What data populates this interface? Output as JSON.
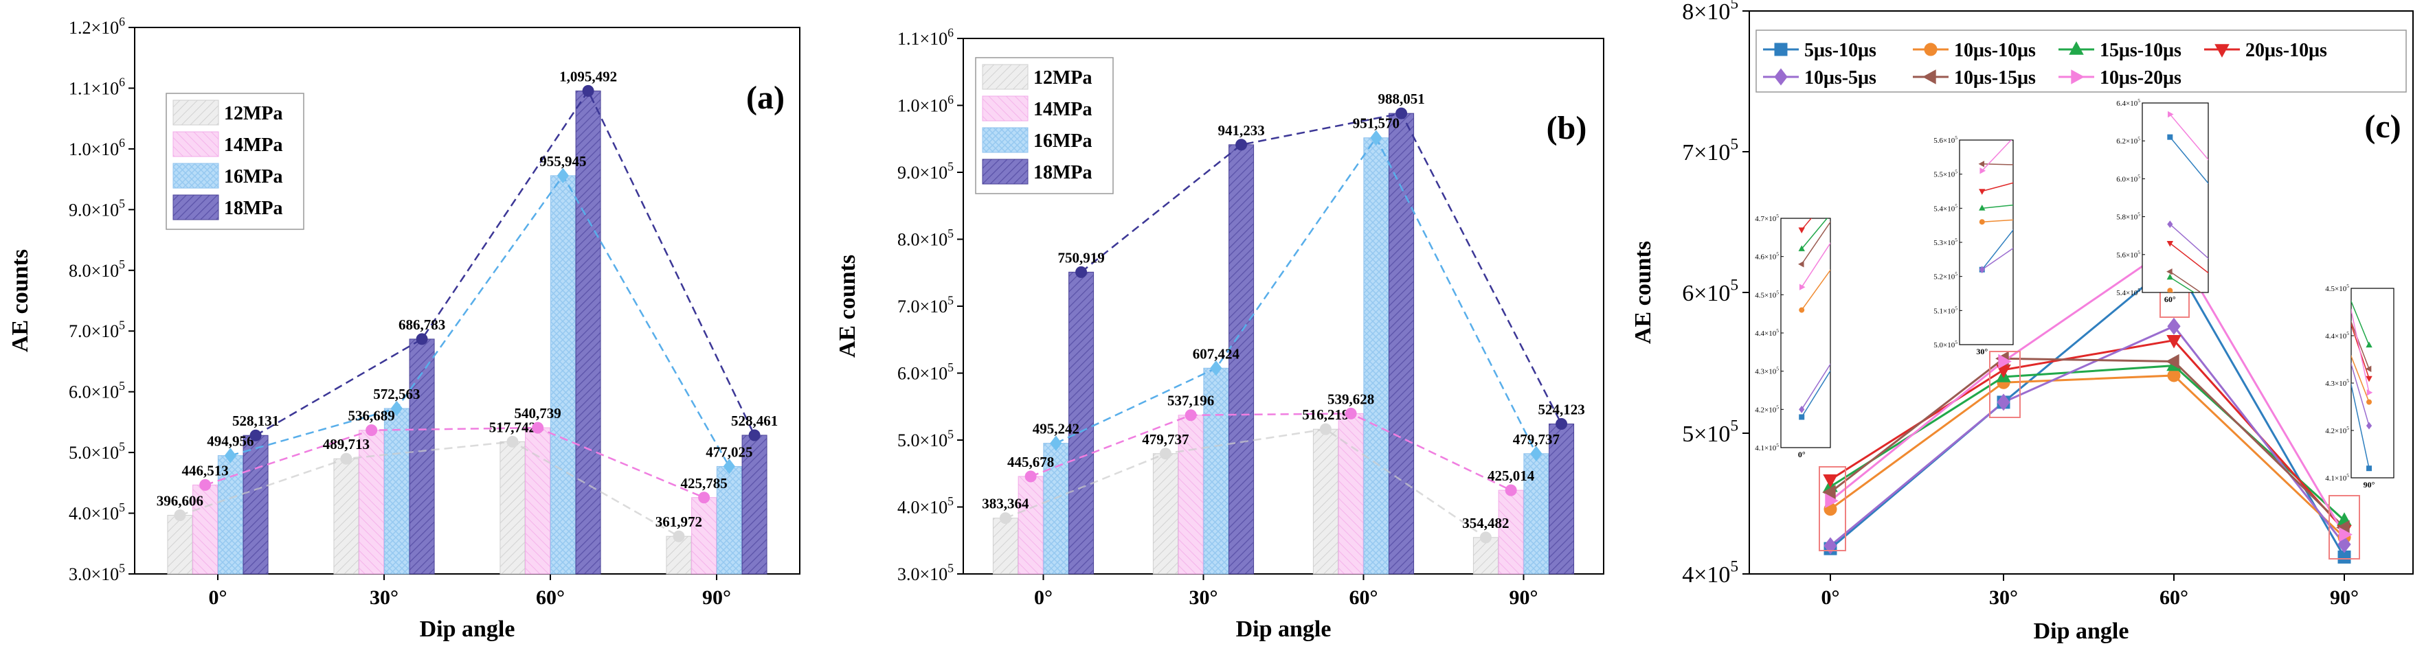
{
  "chart_data": [
    {
      "type": "bar",
      "panel_label": "(a)",
      "xlabel": "Dip angle",
      "ylabel": "AE counts",
      "categories": [
        "0°",
        "30°",
        "60°",
        "90°"
      ],
      "ylim": [
        300000,
        1200000
      ],
      "yticks": [
        {
          "v": 300000,
          "m": "3.0",
          "e": "5"
        },
        {
          "v": 400000,
          "m": "4.0",
          "e": "5"
        },
        {
          "v": 500000,
          "m": "5.0",
          "e": "5"
        },
        {
          "v": 600000,
          "m": "6.0",
          "e": "5"
        },
        {
          "v": 700000,
          "m": "7.0",
          "e": "5"
        },
        {
          "v": 800000,
          "m": "8.0",
          "e": "5"
        },
        {
          "v": 900000,
          "m": "9.0",
          "e": "5"
        },
        {
          "v": 1000000,
          "m": "1.0",
          "e": "6"
        },
        {
          "v": 1100000,
          "m": "1.1",
          "e": "6"
        },
        {
          "v": 1200000,
          "m": "1.2",
          "e": "6"
        }
      ],
      "series": [
        {
          "name": "12MPa",
          "values": [
            396606,
            489713,
            517742,
            361972
          ],
          "labels": [
            "396,606",
            "489,713",
            "517,742",
            "361,972"
          ]
        },
        {
          "name": "14MPa",
          "values": [
            446513,
            536689,
            540739,
            425785
          ],
          "labels": [
            "446,513",
            "536,689",
            "540,739",
            "425,785"
          ]
        },
        {
          "name": "16MPa",
          "values": [
            494956,
            572563,
            955945,
            477025
          ],
          "labels": [
            "494,956",
            "572,563",
            "955,945",
            "477,025"
          ]
        },
        {
          "name": "18MPa",
          "values": [
            528131,
            686783,
            1095492,
            528461
          ],
          "labels": [
            "528,131",
            "686,783",
            "1,095,492",
            "528,461"
          ]
        }
      ]
    },
    {
      "type": "bar",
      "panel_label": "(b)",
      "xlabel": "Dip angle",
      "ylabel": "AE counts",
      "categories": [
        "0°",
        "30°",
        "60°",
        "90°"
      ],
      "ylim": [
        300000,
        1100000
      ],
      "yticks": [
        {
          "v": 300000,
          "m": "3.0",
          "e": "5"
        },
        {
          "v": 400000,
          "m": "4.0",
          "e": "5"
        },
        {
          "v": 500000,
          "m": "5.0",
          "e": "5"
        },
        {
          "v": 600000,
          "m": "6.0",
          "e": "5"
        },
        {
          "v": 700000,
          "m": "7.0",
          "e": "5"
        },
        {
          "v": 800000,
          "m": "8.0",
          "e": "5"
        },
        {
          "v": 900000,
          "m": "9.0",
          "e": "5"
        },
        {
          "v": 1000000,
          "m": "1.0",
          "e": "6"
        },
        {
          "v": 1100000,
          "m": "1.1",
          "e": "6"
        }
      ],
      "series": [
        {
          "name": "12MPa",
          "values": [
            383364,
            479737,
            516219,
            354482
          ],
          "labels": [
            "383,364",
            "479,737",
            "516,219",
            "354,482"
          ]
        },
        {
          "name": "14MPa",
          "values": [
            445678,
            537196,
            539628,
            425014
          ],
          "labels": [
            "445,678",
            "537,196",
            "539,628",
            "425,014"
          ]
        },
        {
          "name": "16MPa",
          "values": [
            495242,
            607424,
            951570,
            479737
          ],
          "labels": [
            "495,242",
            "607,424",
            "951,570",
            "479,737"
          ]
        },
        {
          "name": "18MPa",
          "values": [
            750919,
            941233,
            988051,
            524123
          ],
          "labels": [
            "750,919",
            "941,233",
            "988,051",
            "524,123"
          ]
        }
      ]
    },
    {
      "type": "line",
      "panel_label": "(c)",
      "xlabel": "Dip angle",
      "ylabel": "AE counts",
      "categories": [
        "0°",
        "30°",
        "60°",
        "90°"
      ],
      "ylim": [
        400000,
        800000
      ],
      "yticks": [
        {
          "v": 400000,
          "m": "4",
          "e": "5"
        },
        {
          "v": 500000,
          "m": "5",
          "e": "5"
        },
        {
          "v": 600000,
          "m": "6",
          "e": "5"
        },
        {
          "v": 700000,
          "m": "7",
          "e": "5"
        },
        {
          "v": 800000,
          "m": "8",
          "e": "5"
        }
      ],
      "series": [
        {
          "name": "5μs-10μs",
          "values": [
            418000,
            522000,
            622000,
            412000
          ]
        },
        {
          "name": "10μs-10μs",
          "values": [
            446000,
            536000,
            541000,
            426000
          ]
        },
        {
          "name": "15μs-10μs",
          "values": [
            462000,
            540000,
            548000,
            438000
          ]
        },
        {
          "name": "20μs-10μs",
          "values": [
            467000,
            545000,
            566000,
            431000
          ]
        },
        {
          "name": "10μs-5μs",
          "values": [
            420000,
            522000,
            576000,
            421000
          ]
        },
        {
          "name": "10μs-15μs",
          "values": [
            458000,
            553000,
            551000,
            433000
          ]
        },
        {
          "name": "10μs-20μs",
          "values": [
            452000,
            551000,
            634000,
            428000
          ]
        }
      ],
      "insets": [
        {
          "for": "0°",
          "tick_label": "0°",
          "ylim": [
            410000,
            470000
          ],
          "yticks": [
            {
              "m": "4.1",
              "e": "5",
              "v": 410000
            },
            {
              "m": "4.2",
              "e": "5",
              "v": 420000
            },
            {
              "m": "4.3",
              "e": "5",
              "v": 430000
            },
            {
              "m": "4.4",
              "e": "5",
              "v": 440000
            },
            {
              "m": "4.5",
              "e": "5",
              "v": 450000
            },
            {
              "m": "4.6",
              "e": "5",
              "v": 460000
            },
            {
              "m": "4.7",
              "e": "5",
              "v": 470000
            }
          ]
        },
        {
          "for": "30°",
          "tick_label": "30°",
          "ylim": [
            500000,
            560000
          ],
          "yticks": [
            {
              "m": "5.0",
              "e": "5",
              "v": 500000
            },
            {
              "m": "5.1",
              "e": "5",
              "v": 510000
            },
            {
              "m": "5.2",
              "e": "5",
              "v": 520000
            },
            {
              "m": "5.3",
              "e": "5",
              "v": 530000
            },
            {
              "m": "5.4",
              "e": "5",
              "v": 540000
            },
            {
              "m": "5.5",
              "e": "5",
              "v": 550000
            },
            {
              "m": "5.6",
              "e": "5",
              "v": 560000
            }
          ]
        },
        {
          "for": "60°",
          "tick_label": "60°",
          "ylim": [
            540000,
            640000
          ],
          "yticks": [
            {
              "m": "5.4",
              "e": "5",
              "v": 540000
            },
            {
              "m": "5.6",
              "e": "5",
              "v": 560000
            },
            {
              "m": "5.8",
              "e": "5",
              "v": 580000
            },
            {
              "m": "6.0",
              "e": "5",
              "v": 600000
            },
            {
              "m": "6.2",
              "e": "5",
              "v": 620000
            },
            {
              "m": "6.4",
              "e": "5",
              "v": 640000
            }
          ]
        },
        {
          "for": "90°",
          "tick_label": "90°",
          "ylim": [
            410000,
            450000
          ],
          "yticks": [
            {
              "m": "4.1",
              "e": "5",
              "v": 410000
            },
            {
              "m": "4.2",
              "e": "5",
              "v": 420000
            },
            {
              "m": "4.3",
              "e": "5",
              "v": 430000
            },
            {
              "m": "4.4",
              "e": "5",
              "v": 440000
            },
            {
              "m": "4.5",
              "e": "5",
              "v": 450000
            }
          ]
        }
      ]
    }
  ],
  "colors": {
    "bar_series": [
      "#e8e8e8",
      "#f9c8f2",
      "#a8d4f7",
      "#7870c0"
    ],
    "bar_edge": [
      "#cfcfcf",
      "#f2a9e8",
      "#8fc2ee",
      "#4a4296"
    ],
    "bar_line": [
      "#cccccc",
      "#f07ee0",
      "#58aeea",
      "#3c3796"
    ],
    "bar_marker": [
      "#dadada",
      "#f07ee0",
      "#6fc0f0",
      "#3b3591"
    ],
    "line_series": [
      "#2f7fbf",
      "#f08a30",
      "#21a84a",
      "#e02828",
      "#9a6ccf",
      "#9a5a50",
      "#f580dd"
    ],
    "line_marker_shapes": [
      "square",
      "circle",
      "triangle-up",
      "triangle-down",
      "diamond",
      "triangle-left",
      "triangle-right"
    ],
    "highlight_box": "#f08080"
  }
}
